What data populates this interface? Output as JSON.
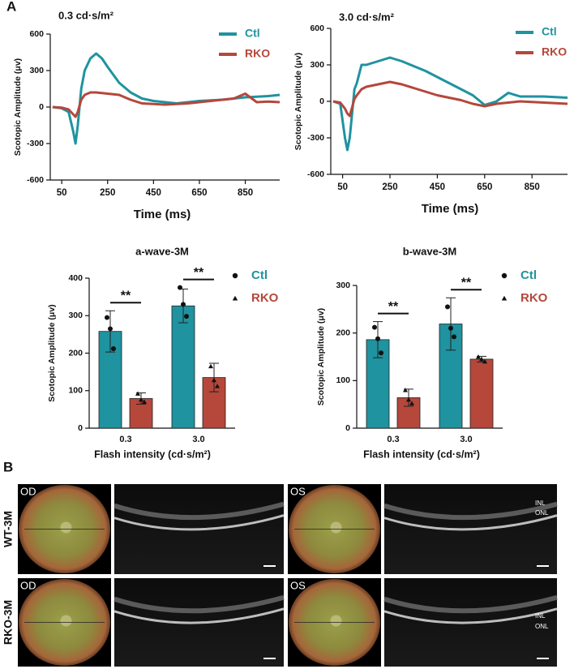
{
  "panel_a_label": "A",
  "chart_data": [
    {
      "type": "line",
      "title": "0.3 cd·s/m²",
      "y_label": "Scotopic Amplitude (μv)",
      "x_label": "Time (ms)",
      "x": [
        10,
        50,
        80,
        100,
        110,
        120,
        135,
        150,
        175,
        200,
        225,
        250,
        300,
        350,
        400,
        450,
        500,
        550,
        600,
        650,
        700,
        750,
        800,
        850,
        900,
        950,
        1000
      ],
      "series": [
        {
          "name": "Ctl",
          "color": "#1f939f",
          "values": [
            0,
            -10,
            -40,
            -200,
            -300,
            -150,
            150,
            300,
            400,
            440,
            400,
            330,
            200,
            120,
            70,
            50,
            40,
            30,
            40,
            50,
            55,
            60,
            70,
            80,
            85,
            90,
            100
          ]
        },
        {
          "name": "RKO",
          "color": "#b5473b",
          "values": [
            0,
            -5,
            -20,
            -60,
            -80,
            -40,
            60,
            100,
            120,
            120,
            115,
            110,
            100,
            60,
            30,
            25,
            20,
            25,
            30,
            40,
            50,
            60,
            70,
            110,
            40,
            45,
            40
          ]
        }
      ],
      "xlim": [
        0,
        1000
      ],
      "ylim": [
        -600,
        600
      ],
      "xticks": [
        50,
        250,
        450,
        650,
        850
      ],
      "yticks": [
        -600,
        -300,
        0,
        300,
        600
      ]
    },
    {
      "type": "line",
      "title": "3.0 cd·s/m²",
      "y_label": "Scotopic Amplitude (μv)",
      "x_label": "Time (ms)",
      "x": [
        10,
        40,
        60,
        70,
        80,
        100,
        110,
        130,
        150,
        200,
        250,
        300,
        350,
        400,
        450,
        500,
        550,
        600,
        650,
        700,
        750,
        800,
        850,
        900,
        950,
        1000
      ],
      "series": [
        {
          "name": "Ctl",
          "color": "#1f939f",
          "values": [
            0,
            -20,
            -300,
            -400,
            -300,
            100,
            150,
            300,
            300,
            330,
            360,
            330,
            290,
            250,
            200,
            150,
            100,
            50,
            -30,
            0,
            70,
            40,
            40,
            40,
            35,
            30
          ]
        },
        {
          "name": "RKO",
          "color": "#b5473b",
          "values": [
            0,
            -10,
            -60,
            -100,
            -120,
            20,
            50,
            100,
            120,
            140,
            160,
            140,
            110,
            80,
            50,
            30,
            10,
            -20,
            -40,
            -20,
            -10,
            0,
            -5,
            -10,
            -15,
            -20
          ]
        }
      ],
      "xlim": [
        0,
        1000
      ],
      "ylim": [
        -600,
        600
      ],
      "xticks": [
        50,
        250,
        450,
        650,
        850
      ],
      "yticks": [
        -600,
        -300,
        0,
        300,
        600
      ]
    },
    {
      "type": "bar",
      "title": "a-wave-3M",
      "y_label": "Scotopic Amplitude (μv)",
      "x_label": "Flash intensity (cd·s/m²)",
      "categories": [
        "0.3",
        "3.0"
      ],
      "significance": [
        "**",
        "**"
      ],
      "series": [
        {
          "name": "Ctl",
          "color": "#1f939f",
          "marker": "circle",
          "values": [
            258,
            326
          ],
          "errors": [
            55,
            45
          ],
          "points": [
            [
              295,
              265,
              212
            ],
            [
              375,
              330,
              298
            ]
          ]
        },
        {
          "name": "RKO",
          "color": "#b5473b",
          "marker": "triangle",
          "values": [
            79,
            135
          ],
          "errors": [
            15,
            38
          ],
          "points": [
            [
              92,
              76,
              70
            ],
            [
              165,
              128,
              112
            ]
          ]
        }
      ],
      "ylim": [
        0,
        400
      ],
      "yticks": [
        0,
        100,
        200,
        300,
        400
      ]
    },
    {
      "type": "bar",
      "title": "b-wave-3M",
      "y_label": "Scotopic Amplitude (μv)",
      "x_label": "Flash intensity (cd·s/m²)",
      "categories": [
        "0.3",
        "3.0"
      ],
      "significance": [
        "**",
        "**"
      ],
      "series": [
        {
          "name": "Ctl",
          "color": "#1f939f",
          "marker": "circle",
          "values": [
            186,
            219
          ],
          "errors": [
            38,
            55
          ],
          "points": [
            [
              212,
              188,
              158
            ],
            [
              255,
              210,
              192
            ]
          ]
        },
        {
          "name": "RKO",
          "color": "#b5473b",
          "marker": "triangle",
          "values": [
            64,
            145
          ],
          "errors": [
            18,
            6
          ],
          "points": [
            [
              80,
              60,
              52
            ],
            [
              150,
              145,
              140
            ]
          ]
        }
      ],
      "ylim": [
        0,
        300
      ],
      "yticks": [
        0,
        100,
        200,
        300
      ]
    }
  ],
  "panel_b": {
    "label": "B",
    "rows": [
      {
        "label": "WT-3M",
        "eyes": [
          "OD",
          "OS"
        ],
        "layers": [
          "INL",
          "ONL"
        ]
      },
      {
        "label": "RKO-3M",
        "eyes": [
          "OD",
          "OS"
        ],
        "layers": [
          "INL",
          "ONL"
        ]
      }
    ]
  }
}
